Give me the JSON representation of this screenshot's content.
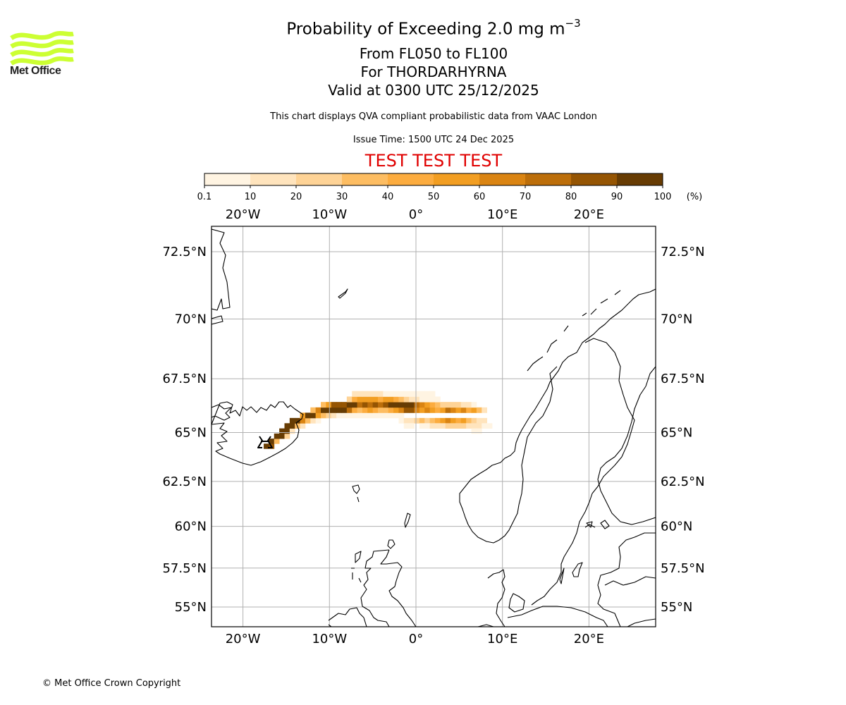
{
  "logo": {
    "name": "Met Office",
    "text": "Met Office",
    "color": "#ccff33"
  },
  "title": {
    "main": "Probability of Exceeding 2.0 mg m",
    "main_sup": "−3",
    "levels": "From FL050 to FL100",
    "volcano": "For THORDARHYRNA",
    "valid": "Valid at 0300 UTC 25/12/2025"
  },
  "description": "This chart displays QVA compliant probabilistic data from VAAC London",
  "issue_time": "Issue Time: 1500 UTC 24 Dec 2025",
  "test_banner": {
    "text": "TEST TEST TEST",
    "color": "#e00000"
  },
  "footer": "© Met Office Crown Copyright",
  "chart_data": {
    "type": "heatmap",
    "title": "Probability of Exceeding 2.0 mg m−3 From FL050 to FL100 For THORDARHYRNA",
    "colorbar": {
      "unit": "(%)",
      "bounds": [
        0.1,
        10,
        20,
        30,
        40,
        50,
        60,
        70,
        80,
        90,
        100
      ],
      "tick_labels": [
        "0.1",
        "10",
        "20",
        "30",
        "40",
        "50",
        "60",
        "70",
        "80",
        "90",
        "100"
      ],
      "colors": [
        "#fff4e2",
        "#ffe4bd",
        "#fed396",
        "#fdbd62",
        "#fcac3f",
        "#f29e22",
        "#da8412",
        "#bc6e0a",
        "#955503",
        "#673c03"
      ]
    },
    "axes": {
      "lon_range": [
        -23.7,
        27.7
      ],
      "lat_range": [
        54.0,
        73.5
      ],
      "lon_ticks": [
        -20,
        -10,
        0,
        10,
        20
      ],
      "lon_tick_labels": [
        "20°W",
        "10°W",
        "0°",
        "10°E",
        "20°E"
      ],
      "lat_ticks": [
        72.5,
        70,
        67.5,
        65,
        62.5,
        60,
        57.5,
        55
      ],
      "lat_tick_labels": [
        "72.5°N",
        "70°N",
        "67.5°N",
        "65°N",
        "62.5°N",
        "60°N",
        "57.5°N",
        "55°N"
      ],
      "grid": true
    },
    "volcano_marker": {
      "name": "THORDARHYRNA",
      "lon": -17.6,
      "lat": 64.3
    },
    "cells_note": "probability (%) per 0.6° lon × 0.25° lat grid cell: [lon_west, lat_south, percent]",
    "cells": [
      [
        -17.6,
        64.2,
        95
      ],
      [
        -17.0,
        64.2,
        85
      ],
      [
        -17.0,
        64.45,
        90
      ],
      [
        -16.4,
        64.45,
        30
      ],
      [
        -16.4,
        64.7,
        95
      ],
      [
        -15.8,
        64.7,
        92
      ],
      [
        -15.2,
        64.7,
        20
      ],
      [
        -15.8,
        64.95,
        92
      ],
      [
        -15.2,
        64.95,
        95
      ],
      [
        -14.6,
        64.95,
        15
      ],
      [
        -15.2,
        65.2,
        95
      ],
      [
        -14.6,
        65.2,
        92
      ],
      [
        -14.0,
        65.2,
        30
      ],
      [
        -13.4,
        65.2,
        15
      ],
      [
        -14.6,
        65.45,
        92
      ],
      [
        -14.0,
        65.45,
        95
      ],
      [
        -13.4,
        65.45,
        60
      ],
      [
        -12.8,
        65.45,
        30
      ],
      [
        -12.2,
        65.45,
        15
      ],
      [
        -11.6,
        65.45,
        8
      ],
      [
        -13.4,
        65.7,
        55
      ],
      [
        -12.8,
        65.7,
        92
      ],
      [
        -12.2,
        65.7,
        95
      ],
      [
        -11.6,
        65.7,
        50
      ],
      [
        -11.0,
        65.7,
        35
      ],
      [
        -10.4,
        65.7,
        20
      ],
      [
        -9.8,
        65.7,
        12
      ],
      [
        -9.2,
        65.7,
        8
      ],
      [
        -8.6,
        65.7,
        8
      ],
      [
        -8.0,
        65.7,
        8
      ],
      [
        -7.4,
        65.7,
        8
      ],
      [
        -6.8,
        65.7,
        8
      ],
      [
        -6.2,
        65.7,
        8
      ],
      [
        -5.6,
        65.7,
        8
      ],
      [
        -5.0,
        65.7,
        8
      ],
      [
        -4.4,
        65.7,
        8
      ],
      [
        -3.8,
        65.7,
        8
      ],
      [
        -3.2,
        65.7,
        5
      ],
      [
        -2.6,
        65.7,
        5
      ],
      [
        -2.0,
        65.7,
        5
      ],
      [
        -12.2,
        65.95,
        30
      ],
      [
        -11.6,
        65.95,
        65
      ],
      [
        -11.0,
        65.95,
        92
      ],
      [
        -10.4,
        65.95,
        95
      ],
      [
        -9.8,
        65.95,
        95
      ],
      [
        -9.2,
        65.95,
        95
      ],
      [
        -8.6,
        65.95,
        92
      ],
      [
        -8.0,
        65.95,
        75
      ],
      [
        -7.4,
        65.95,
        45
      ],
      [
        -6.8,
        65.95,
        35
      ],
      [
        -6.2,
        65.95,
        45
      ],
      [
        -5.6,
        65.95,
        55
      ],
      [
        -5.0,
        65.95,
        45
      ],
      [
        -4.4,
        65.95,
        35
      ],
      [
        -3.8,
        65.95,
        35
      ],
      [
        -3.2,
        65.95,
        45
      ],
      [
        -2.6,
        65.95,
        55
      ],
      [
        -2.0,
        65.95,
        65
      ],
      [
        -1.4,
        65.95,
        80
      ],
      [
        -0.8,
        65.95,
        85
      ],
      [
        -0.2,
        65.95,
        62
      ],
      [
        0.4,
        65.95,
        55
      ],
      [
        1.0,
        65.95,
        65
      ],
      [
        1.6,
        65.95,
        55
      ],
      [
        2.2,
        65.95,
        45
      ],
      [
        2.8,
        65.95,
        55
      ],
      [
        3.4,
        65.95,
        75
      ],
      [
        4.0,
        65.95,
        65
      ],
      [
        4.6,
        65.95,
        55
      ],
      [
        5.2,
        65.95,
        65
      ],
      [
        5.8,
        65.95,
        45
      ],
      [
        6.4,
        65.95,
        55
      ],
      [
        7.0,
        65.95,
        35
      ],
      [
        7.6,
        65.95,
        15
      ],
      [
        -11.0,
        66.2,
        35
      ],
      [
        -10.4,
        66.2,
        55
      ],
      [
        -9.8,
        66.2,
        80
      ],
      [
        -9.2,
        66.2,
        85
      ],
      [
        -8.6,
        66.2,
        85
      ],
      [
        -8.0,
        66.2,
        95
      ],
      [
        -7.4,
        66.2,
        90
      ],
      [
        -6.8,
        66.2,
        75
      ],
      [
        -6.2,
        66.2,
        85
      ],
      [
        -5.6,
        66.2,
        75
      ],
      [
        -5.0,
        66.2,
        85
      ],
      [
        -4.4,
        66.2,
        75
      ],
      [
        -3.8,
        66.2,
        85
      ],
      [
        -3.2,
        66.2,
        95
      ],
      [
        -2.6,
        66.2,
        95
      ],
      [
        -2.0,
        66.2,
        92
      ],
      [
        -1.4,
        66.2,
        95
      ],
      [
        -0.8,
        66.2,
        90
      ],
      [
        -0.2,
        66.2,
        75
      ],
      [
        0.4,
        66.2,
        65
      ],
      [
        1.0,
        66.2,
        55
      ],
      [
        1.6,
        66.2,
        45
      ],
      [
        2.2,
        66.2,
        35
      ],
      [
        2.8,
        66.2,
        25
      ],
      [
        3.4,
        66.2,
        25
      ],
      [
        4.0,
        66.2,
        25
      ],
      [
        4.6,
        66.2,
        20
      ],
      [
        5.2,
        66.2,
        15
      ],
      [
        5.8,
        66.2,
        12
      ],
      [
        6.4,
        66.2,
        8
      ],
      [
        -8.0,
        66.45,
        25
      ],
      [
        -7.4,
        66.45,
        45
      ],
      [
        -6.8,
        66.45,
        55
      ],
      [
        -6.2,
        66.45,
        55
      ],
      [
        -5.6,
        66.45,
        55
      ],
      [
        -5.0,
        66.45,
        55
      ],
      [
        -4.4,
        66.45,
        45
      ],
      [
        -3.8,
        66.45,
        55
      ],
      [
        -3.2,
        66.45,
        55
      ],
      [
        -2.6,
        66.45,
        45
      ],
      [
        -2.0,
        66.45,
        35
      ],
      [
        -1.4,
        66.45,
        25
      ],
      [
        -0.8,
        66.45,
        15
      ],
      [
        -0.2,
        66.45,
        12
      ],
      [
        0.4,
        66.45,
        8
      ],
      [
        1.0,
        66.45,
        8
      ],
      [
        1.6,
        66.45,
        8
      ],
      [
        2.2,
        66.45,
        5
      ],
      [
        -7.4,
        66.7,
        15
      ],
      [
        -6.8,
        66.7,
        15
      ],
      [
        -6.2,
        66.7,
        15
      ],
      [
        -5.6,
        66.7,
        15
      ],
      [
        -5.0,
        66.7,
        15
      ],
      [
        -4.4,
        66.7,
        15
      ],
      [
        -3.8,
        66.7,
        8
      ],
      [
        -3.2,
        66.7,
        8
      ],
      [
        -2.6,
        66.7,
        8
      ],
      [
        -2.0,
        66.7,
        8
      ],
      [
        -1.4,
        66.7,
        5
      ],
      [
        -0.8,
        66.7,
        5
      ],
      [
        -0.2,
        66.7,
        5
      ],
      [
        0.4,
        66.7,
        5
      ],
      [
        1.0,
        66.7,
        5
      ],
      [
        1.6,
        66.7,
        5
      ],
      [
        -2.0,
        65.45,
        8
      ],
      [
        -1.4,
        65.45,
        12
      ],
      [
        -0.8,
        65.45,
        15
      ],
      [
        -0.2,
        65.45,
        25
      ],
      [
        0.4,
        65.45,
        35
      ],
      [
        1.0,
        65.45,
        25
      ],
      [
        1.6,
        65.45,
        35
      ],
      [
        2.2,
        65.45,
        45
      ],
      [
        2.8,
        65.45,
        55
      ],
      [
        3.4,
        65.45,
        62
      ],
      [
        4.0,
        65.45,
        55
      ],
      [
        4.6,
        65.45,
        45
      ],
      [
        5.2,
        65.45,
        55
      ],
      [
        5.8,
        65.45,
        35
      ],
      [
        6.4,
        65.45,
        25
      ],
      [
        7.0,
        65.45,
        15
      ],
      [
        7.6,
        65.45,
        10
      ],
      [
        -1.4,
        65.2,
        8
      ],
      [
        -0.8,
        65.2,
        8
      ],
      [
        0.4,
        65.2,
        8
      ],
      [
        1.0,
        65.2,
        8
      ],
      [
        1.6,
        65.2,
        12
      ],
      [
        2.2,
        65.2,
        15
      ],
      [
        2.8,
        65.2,
        15
      ],
      [
        3.4,
        65.2,
        20
      ],
      [
        4.0,
        65.2,
        25
      ],
      [
        4.6,
        65.2,
        25
      ],
      [
        5.2,
        65.2,
        20
      ],
      [
        5.8,
        65.2,
        15
      ],
      [
        6.4,
        65.2,
        12
      ],
      [
        7.0,
        65.2,
        10
      ],
      [
        7.6,
        65.2,
        8
      ],
      [
        8.2,
        65.2,
        5
      ],
      [
        6.4,
        64.95,
        8
      ],
      [
        7.0,
        64.95,
        8
      ]
    ]
  }
}
